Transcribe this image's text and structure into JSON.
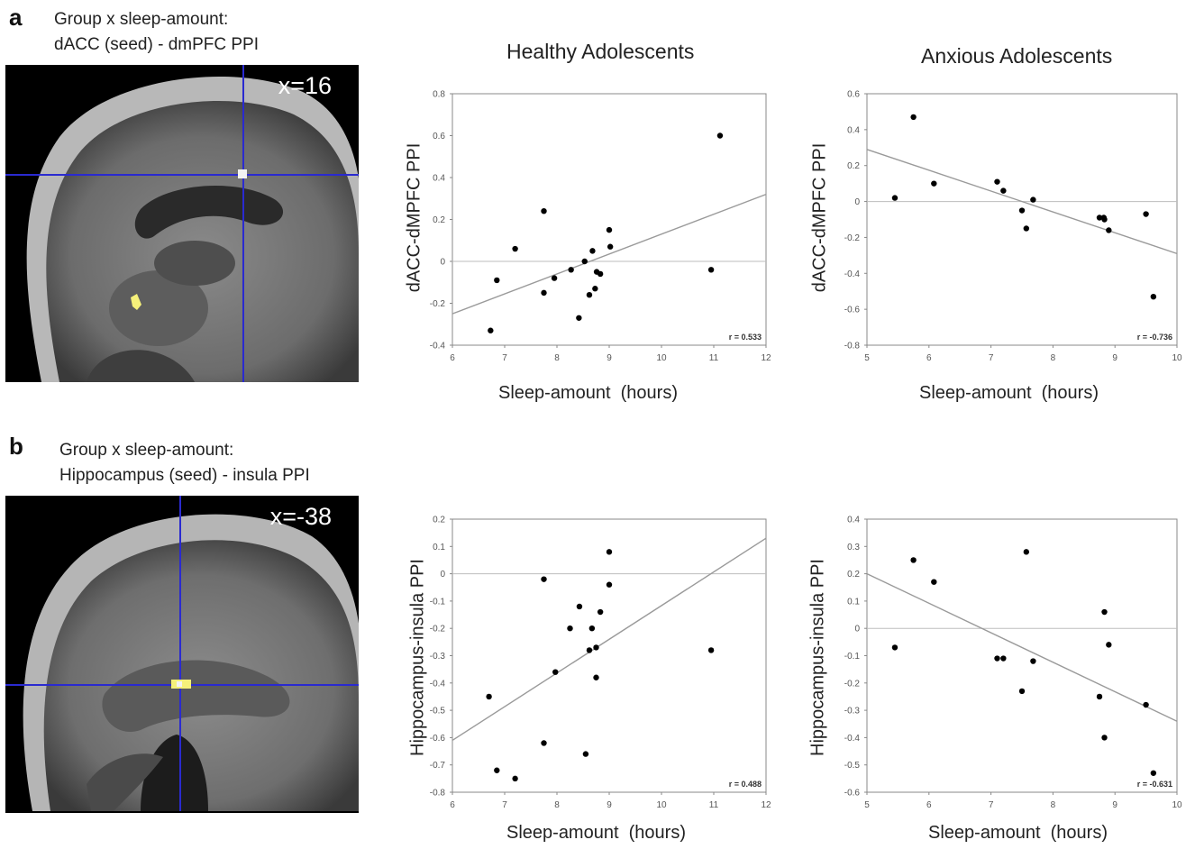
{
  "figure": {
    "panel_a": {
      "letter": "a",
      "caption_line1": "Group x sleep-amount:",
      "caption_line2": "dACC (seed) - dmPFC PPI",
      "slice_label": "x=16"
    },
    "panel_b": {
      "letter": "b",
      "caption_line1": "Group x sleep-amount:",
      "caption_line2": "Hippocampus (seed) - insula PPI",
      "slice_label": "x=-38"
    },
    "column_titles": [
      "Healthy Adolescents",
      "Anxious Adolescents"
    ],
    "colors": {
      "crosshair": "#2a2ad0",
      "activation": "#f5f07a",
      "points": "#000000",
      "fit_line": "#9a9a9a",
      "frame": "#888888"
    }
  },
  "chart_data": [
    {
      "type": "scatter",
      "title": "Healthy Adolescents",
      "xlabel": "Sleep-amount  (hours)",
      "ylabel": "dACC-dMPFC PPI",
      "xlim": [
        6,
        12
      ],
      "ylim": [
        -0.4,
        0.8
      ],
      "xticks": [
        6,
        7,
        8,
        9,
        10,
        11,
        12
      ],
      "yticks": [
        -0.4,
        -0.2,
        0,
        0.2,
        0.4,
        0.6,
        0.8
      ],
      "ytick_labels": [
        "-0.4",
        "-0.2",
        "0",
        "0.2",
        "0.4",
        "0.6",
        "0.8"
      ],
      "zero_line": true,
      "points": [
        {
          "x": 6.73,
          "y": -0.33
        },
        {
          "x": 6.85,
          "y": -0.09
        },
        {
          "x": 7.2,
          "y": 0.06
        },
        {
          "x": 7.75,
          "y": 0.24
        },
        {
          "x": 7.75,
          "y": -0.15
        },
        {
          "x": 7.95,
          "y": -0.08
        },
        {
          "x": 8.27,
          "y": -0.04
        },
        {
          "x": 8.42,
          "y": -0.27
        },
        {
          "x": 8.53,
          "y": 0.0
        },
        {
          "x": 8.62,
          "y": -0.16
        },
        {
          "x": 8.68,
          "y": 0.05
        },
        {
          "x": 8.73,
          "y": -0.13
        },
        {
          "x": 8.76,
          "y": -0.05
        },
        {
          "x": 8.83,
          "y": -0.06
        },
        {
          "x": 9.0,
          "y": 0.15
        },
        {
          "x": 9.02,
          "y": 0.07
        },
        {
          "x": 10.95,
          "y": -0.04
        },
        {
          "x": 11.12,
          "y": 0.6
        }
      ],
      "fit_line": [
        [
          6,
          -0.25
        ],
        [
          12,
          0.32
        ]
      ],
      "r_label": "r = 0.533"
    },
    {
      "type": "scatter",
      "title": "Anxious Adolescents",
      "xlabel": "Sleep-amount  (hours)",
      "ylabel": "dACC-dMPFC PPI",
      "xlim": [
        5,
        10
      ],
      "ylim": [
        -0.8,
        0.6
      ],
      "xticks": [
        5,
        6,
        7,
        8,
        9,
        10
      ],
      "yticks": [
        -0.8,
        -0.6,
        -0.4,
        -0.2,
        0,
        0.2,
        0.4,
        0.6
      ],
      "ytick_labels": [
        "-0.8",
        "-0.6",
        "-0.4",
        "-0.2",
        "0",
        "0.2",
        "0.4",
        "0.6"
      ],
      "zero_line": true,
      "points": [
        {
          "x": 5.45,
          "y": 0.02
        },
        {
          "x": 5.75,
          "y": 0.47
        },
        {
          "x": 6.08,
          "y": 0.1
        },
        {
          "x": 7.1,
          "y": 0.11
        },
        {
          "x": 7.2,
          "y": 0.06
        },
        {
          "x": 7.5,
          "y": -0.05
        },
        {
          "x": 7.57,
          "y": -0.15
        },
        {
          "x": 7.68,
          "y": 0.01
        },
        {
          "x": 8.75,
          "y": -0.09
        },
        {
          "x": 8.82,
          "y": -0.09
        },
        {
          "x": 8.83,
          "y": -0.1
        },
        {
          "x": 8.9,
          "y": -0.16
        },
        {
          "x": 9.5,
          "y": -0.07
        },
        {
          "x": 9.62,
          "y": -0.53
        }
      ],
      "fit_line": [
        [
          5,
          0.29
        ],
        [
          10,
          -0.29
        ]
      ],
      "r_label": "r = -0.736"
    },
    {
      "type": "scatter",
      "title": "",
      "xlabel": "Sleep-amount  (hours)",
      "ylabel": "Hippocampus-insula PPI",
      "xlim": [
        6,
        12
      ],
      "ylim": [
        -0.8,
        0.2
      ],
      "xticks": [
        6,
        7,
        8,
        9,
        10,
        11,
        12
      ],
      "yticks": [
        -0.8,
        -0.7,
        -0.6,
        -0.5,
        -0.4,
        -0.3,
        -0.2,
        -0.1,
        0,
        0.1,
        0.2
      ],
      "ytick_labels": [
        "-0.8",
        "-0.7",
        "-0.6",
        "-0.5",
        "-0.4",
        "-0.3",
        "-0.2",
        "-0.1",
        "0",
        "0.1",
        "0.2"
      ],
      "zero_line": true,
      "points": [
        {
          "x": 6.7,
          "y": -0.45
        },
        {
          "x": 6.85,
          "y": -0.72
        },
        {
          "x": 7.2,
          "y": -0.75
        },
        {
          "x": 7.75,
          "y": -0.02
        },
        {
          "x": 7.75,
          "y": -0.62
        },
        {
          "x": 7.97,
          "y": -0.36
        },
        {
          "x": 8.25,
          "y": -0.2
        },
        {
          "x": 8.43,
          "y": -0.12
        },
        {
          "x": 8.55,
          "y": -0.66
        },
        {
          "x": 8.62,
          "y": -0.28
        },
        {
          "x": 8.67,
          "y": -0.2
        },
        {
          "x": 8.75,
          "y": -0.27
        },
        {
          "x": 8.75,
          "y": -0.38
        },
        {
          "x": 8.83,
          "y": -0.14
        },
        {
          "x": 9.0,
          "y": 0.08
        },
        {
          "x": 9.0,
          "y": -0.04
        },
        {
          "x": 10.95,
          "y": -0.28
        }
      ],
      "fit_line": [
        [
          6,
          -0.61
        ],
        [
          12,
          0.13
        ]
      ],
      "r_label": "r = 0.488"
    },
    {
      "type": "scatter",
      "title": "",
      "xlabel": "Sleep-amount  (hours)",
      "ylabel": "Hippocampus-insula PPI",
      "xlim": [
        5,
        10
      ],
      "ylim": [
        -0.6,
        0.4
      ],
      "xticks": [
        5,
        6,
        7,
        8,
        9,
        10
      ],
      "yticks": [
        -0.6,
        -0.5,
        -0.4,
        -0.3,
        -0.2,
        -0.1,
        0,
        0.1,
        0.2,
        0.3,
        0.4
      ],
      "ytick_labels": [
        "-0.6",
        "-0.5",
        "-0.4",
        "-0.3",
        "-0.2",
        "-0.1",
        "0",
        "0.1",
        "0.2",
        "0.3",
        "0.4"
      ],
      "zero_line": true,
      "points": [
        {
          "x": 5.45,
          "y": -0.07
        },
        {
          "x": 5.75,
          "y": 0.25
        },
        {
          "x": 6.08,
          "y": 0.17
        },
        {
          "x": 7.1,
          "y": -0.11
        },
        {
          "x": 7.2,
          "y": -0.11
        },
        {
          "x": 7.5,
          "y": -0.23
        },
        {
          "x": 7.57,
          "y": 0.28
        },
        {
          "x": 7.68,
          "y": -0.12
        },
        {
          "x": 8.75,
          "y": -0.25
        },
        {
          "x": 8.83,
          "y": 0.06
        },
        {
          "x": 8.83,
          "y": -0.4
        },
        {
          "x": 8.9,
          "y": -0.06
        },
        {
          "x": 9.5,
          "y": -0.28
        },
        {
          "x": 9.62,
          "y": -0.53
        }
      ],
      "fit_line": [
        [
          5,
          0.2
        ],
        [
          10,
          -0.34
        ]
      ],
      "r_label": "r = -0.631"
    }
  ]
}
